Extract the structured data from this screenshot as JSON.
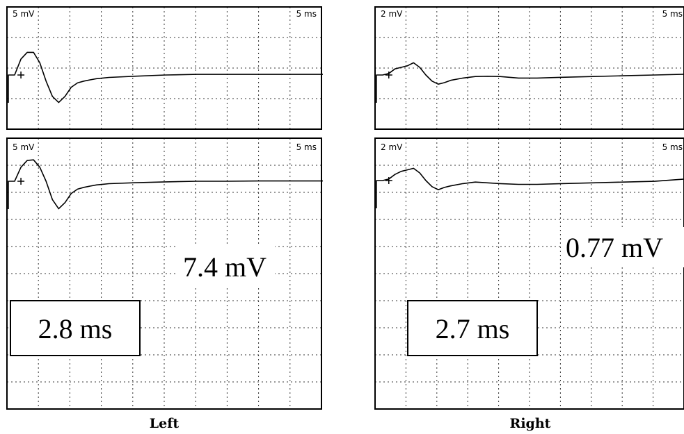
{
  "colors": {
    "trace": "#000000",
    "grid": "#333333",
    "frame": "#000000"
  },
  "panels": [
    {
      "caption": "Left",
      "traces": [
        {
          "voltage_scale": "5 mV",
          "time_scale": "5 ms"
        },
        {
          "voltage_scale": "5 mV",
          "time_scale": "5 ms",
          "amplitude": "7.4 mV",
          "latency": "2.8 ms"
        }
      ]
    },
    {
      "caption": "Right",
      "traces": [
        {
          "voltage_scale": "2 mV",
          "time_scale": "5 ms"
        },
        {
          "voltage_scale": "2 mV",
          "time_scale": "5 ms",
          "amplitude": "0.77 mV",
          "latency": "2.7 ms"
        }
      ]
    }
  ],
  "chart_data": [
    {
      "type": "line",
      "panel": "Left",
      "trace": 1,
      "x": [
        0,
        1,
        2,
        3,
        4,
        5,
        6,
        7,
        8,
        9,
        10,
        11,
        12,
        13,
        14,
        15,
        16,
        20,
        25,
        30,
        35,
        40,
        45,
        50
      ],
      "y": [
        0,
        0,
        2.6,
        3.7,
        3.7,
        2.0,
        -1.0,
        -3.5,
        -4.5,
        -3.5,
        -2.0,
        -1.3,
        -1.0,
        -0.8,
        -0.6,
        -0.5,
        -0.4,
        -0.2,
        0,
        0.1,
        0.1,
        0.1,
        0.1,
        0.1
      ]
    },
    {
      "type": "line",
      "panel": "Left",
      "trace": 2,
      "x": [
        0,
        1,
        2,
        3,
        4,
        5,
        6,
        7,
        8,
        9,
        10,
        11,
        12,
        13,
        14,
        15,
        16,
        20,
        25,
        30,
        35,
        40,
        45,
        50
      ],
      "y": [
        0,
        0,
        2.3,
        3.4,
        3.5,
        2.3,
        0,
        -3.0,
        -4.5,
        -3.5,
        -2.0,
        -1.3,
        -1.0,
        -0.8,
        -0.6,
        -0.5,
        -0.4,
        -0.25,
        -0.1,
        0,
        0,
        0.05,
        0.05,
        0.05
      ]
    },
    {
      "type": "line",
      "panel": "Right",
      "trace": 1,
      "x": [
        0,
        1,
        2,
        3,
        4,
        5,
        6,
        7,
        8,
        9,
        10,
        11,
        12,
        14,
        16,
        18,
        20,
        23,
        26,
        30,
        35,
        40,
        45,
        50
      ],
      "y": [
        0,
        0,
        0.1,
        0.4,
        0.5,
        0.6,
        0.8,
        0.5,
        0,
        -0.4,
        -0.6,
        -0.5,
        -0.35,
        -0.2,
        -0.1,
        -0.08,
        -0.1,
        -0.2,
        -0.2,
        -0.15,
        -0.1,
        -0.05,
        0,
        0.05
      ]
    },
    {
      "type": "line",
      "panel": "Right",
      "trace": 2,
      "x": [
        0,
        1,
        2,
        3,
        4,
        5,
        6,
        7,
        8,
        9,
        10,
        11,
        12,
        14,
        16,
        18,
        20,
        23,
        26,
        30,
        35,
        40,
        45,
        50
      ],
      "y": [
        0,
        0,
        0.1,
        0.4,
        0.6,
        0.7,
        0.8,
        0.5,
        0,
        -0.4,
        -0.6,
        -0.45,
        -0.35,
        -0.2,
        -0.1,
        -0.15,
        -0.2,
        -0.25,
        -0.25,
        -0.2,
        -0.15,
        -0.1,
        -0.05,
        0.1
      ]
    }
  ]
}
